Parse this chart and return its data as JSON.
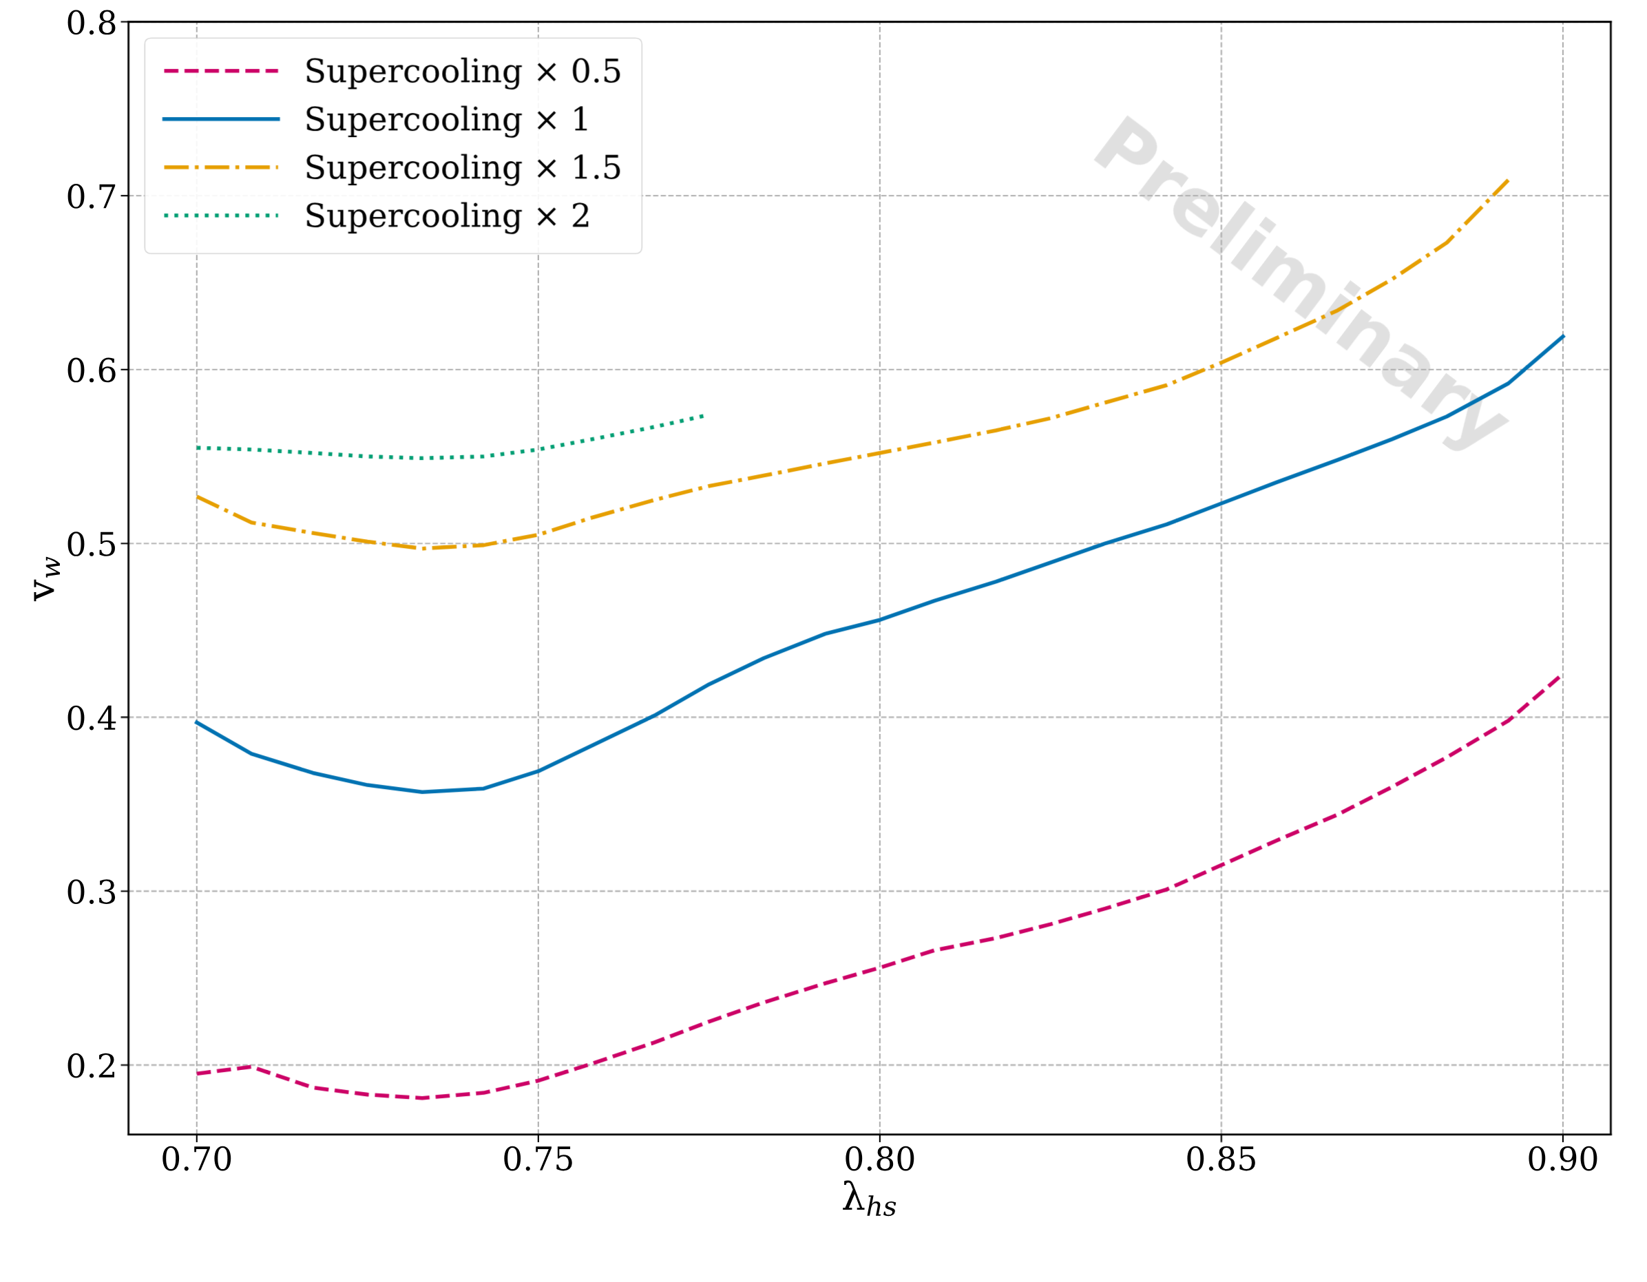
{
  "chart_data": {
    "type": "line",
    "xlabel": "λ$_{hs}$",
    "ylabel": "v$_{w}$",
    "x": [
      0.7,
      0.708,
      0.717,
      0.725,
      0.733,
      0.742,
      0.75,
      0.758,
      0.767,
      0.775,
      0.783,
      0.792,
      0.8,
      0.808,
      0.817,
      0.825,
      0.833,
      0.842,
      0.85,
      0.858,
      0.867,
      0.875,
      0.883,
      0.892,
      0.9
    ],
    "series": [
      {
        "name": "Supercooling × 0.5",
        "color": "#cc0066",
        "line_style": "dashed",
        "values": [
          0.195,
          0.199,
          0.187,
          0.183,
          0.181,
          0.184,
          0.191,
          0.201,
          0.213,
          0.225,
          0.236,
          0.247,
          0.256,
          0.266,
          0.273,
          0.281,
          0.29,
          0.301,
          0.315,
          0.329,
          0.344,
          0.36,
          0.377,
          0.398,
          0.425
        ]
      },
      {
        "name": "Supercooling × 1",
        "color": "#0072b2",
        "line_style": "solid",
        "values": [
          0.397,
          0.379,
          0.368,
          0.361,
          0.357,
          0.359,
          0.369,
          0.384,
          0.401,
          0.419,
          0.434,
          0.448,
          0.456,
          0.467,
          0.478,
          0.489,
          0.5,
          0.511,
          0.523,
          0.535,
          0.548,
          0.56,
          0.573,
          0.592,
          0.619
        ]
      },
      {
        "name": "Supercooling × 1.5",
        "color": "#e69f00",
        "line_style": "dashdot",
        "values": [
          0.527,
          0.512,
          0.506,
          0.501,
          0.497,
          0.499,
          0.505,
          0.515,
          0.525,
          0.533,
          0.539,
          0.546,
          0.552,
          0.558,
          0.565,
          0.572,
          0.581,
          0.591,
          0.604,
          0.618,
          0.634,
          0.652,
          0.673,
          0.709,
          null
        ]
      },
      {
        "name": "Supercooling × 2",
        "color": "#009e73",
        "line_style": "dotted",
        "values": [
          0.555,
          0.554,
          0.552,
          0.55,
          0.549,
          0.55,
          0.554,
          0.56,
          0.567,
          0.574,
          null,
          null,
          null,
          null,
          null,
          null,
          null,
          null,
          null,
          null,
          null,
          null,
          null,
          null,
          null
        ]
      }
    ],
    "xlim": [
      0.69,
      0.907
    ],
    "ylim": [
      0.16,
      0.8
    ],
    "xticks": [
      {
        "value": 0.7,
        "label": "0.70"
      },
      {
        "value": 0.75,
        "label": "0.75"
      },
      {
        "value": 0.8,
        "label": "0.80"
      },
      {
        "value": 0.85,
        "label": "0.85"
      },
      {
        "value": 0.9,
        "label": "0.90"
      }
    ],
    "yticks": [
      0.2,
      0.3,
      0.4,
      0.5,
      0.6,
      0.7,
      0.8
    ],
    "grid": true,
    "legend": "top left",
    "marker": "none",
    "annotations": [
      "Preliminary"
    ]
  }
}
